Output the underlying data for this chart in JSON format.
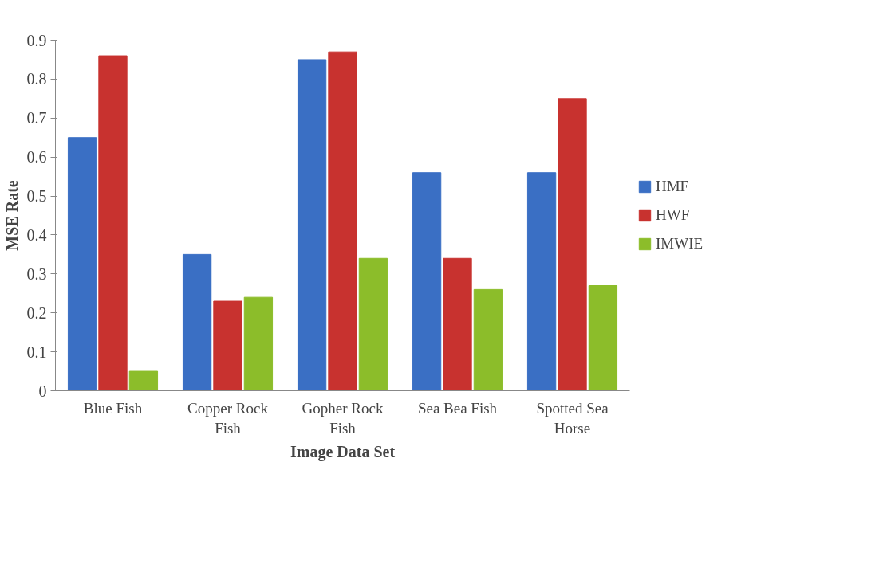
{
  "chart_data": {
    "type": "bar",
    "xlabel": "Image Data Set",
    "ylabel": "MSE Rate",
    "categories": [
      "Blue Fish",
      "Copper Rock Fish",
      "Gopher Rock Fish",
      "Sea Bea Fish",
      "Spotted Sea Horse"
    ],
    "series": [
      {
        "name": "HMF",
        "color": "#3a6fc4",
        "values": [
          0.65,
          0.35,
          0.85,
          0.56,
          0.56
        ]
      },
      {
        "name": "HWF",
        "color": "#c8322f",
        "values": [
          0.86,
          0.23,
          0.87,
          0.34,
          0.75
        ]
      },
      {
        "name": "IMWIE",
        "color": "#8cbd2a",
        "values": [
          0.05,
          0.24,
          0.34,
          0.26,
          0.27
        ]
      }
    ],
    "ylim": [
      0,
      0.9
    ],
    "yticks": [
      0,
      0.1,
      0.2,
      0.3,
      0.4,
      0.5,
      0.6,
      0.7,
      0.8,
      0.9
    ],
    "grid": false,
    "legend": "right"
  }
}
